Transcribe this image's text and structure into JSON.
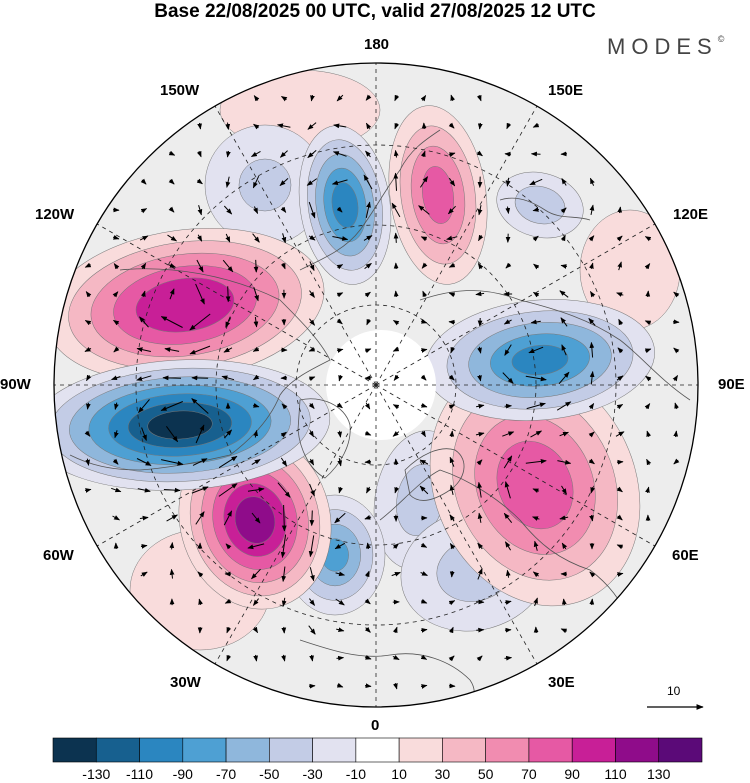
{
  "title": "Base 22/08/2025 00 UTC, valid 27/08/2025 12 UTC",
  "brand": {
    "name": "MODES",
    "mark": "©"
  },
  "longitude_labels": {
    "n180": "180",
    "e150": "150E",
    "e120": "120E",
    "e90": "90E",
    "e60": "60E",
    "e30": "30E",
    "s0": "0",
    "w30": "30W",
    "w60": "60W",
    "w90": "90W",
    "w120": "120W",
    "w150": "150W"
  },
  "reference_vector": {
    "label": "10"
  },
  "colorbar": {
    "colors": [
      "#0c3350",
      "#17608f",
      "#2b86c0",
      "#4ea0d3",
      "#8fb7dc",
      "#c3cce6",
      "#e2e2f0",
      "#ffffff",
      "#f9dcdc",
      "#f5b8c4",
      "#f18cb0",
      "#e659a4",
      "#c81f97",
      "#8f0c8a",
      "#5b0a78"
    ],
    "ticks": [
      "-130",
      "-110",
      "-90",
      "-70",
      "-50",
      "-30",
      "-10",
      "10",
      "30",
      "50",
      "70",
      "90",
      "110",
      "130"
    ]
  },
  "anomaly_centers": [
    {
      "name": "pos-150e",
      "value": 75
    },
    {
      "name": "neg-east-siberia",
      "value": -40
    },
    {
      "name": "neg-170w",
      "value": -95
    },
    {
      "name": "neg-150w",
      "value": -30
    },
    {
      "name": "pos-115w",
      "value": 105
    },
    {
      "name": "neg-85w",
      "value": -130
    },
    {
      "name": "pos-50w",
      "value": 115
    },
    {
      "name": "neg-20w",
      "value": -70
    },
    {
      "name": "neg-scandinavia",
      "value": -35
    },
    {
      "name": "neg-east-europe",
      "value": -35
    },
    {
      "name": "pos-60e",
      "value": 80
    },
    {
      "name": "neg-95e",
      "value": -90
    },
    {
      "name": "pos-165w",
      "value": 25
    },
    {
      "name": "pos-115e",
      "value": 25
    },
    {
      "name": "pos-40w",
      "value": 25
    }
  ]
}
